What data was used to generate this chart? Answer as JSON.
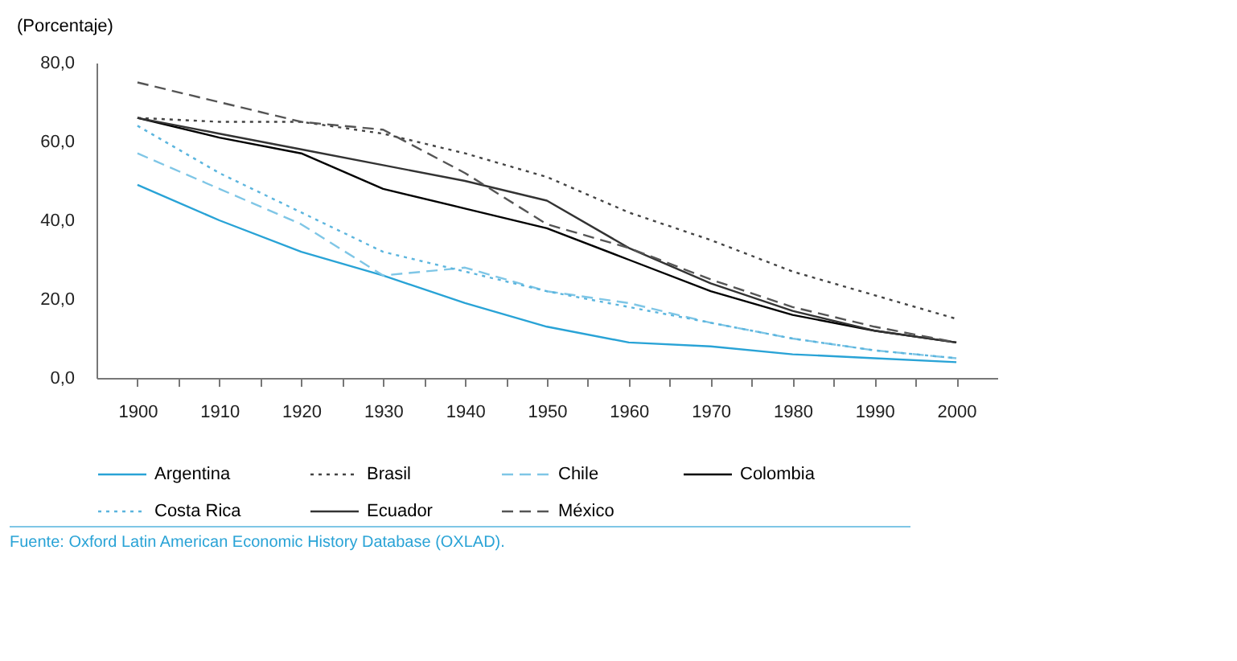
{
  "chart_data": {
    "type": "line",
    "ylabel": "(Porcentaje)",
    "x": [
      1900,
      1910,
      1920,
      1930,
      1940,
      1950,
      1960,
      1970,
      1980,
      1990,
      2000
    ],
    "series": [
      {
        "name": "Argentina",
        "color": "#29a3d6",
        "line_style": "solid",
        "values": [
          49,
          40,
          32,
          26,
          19,
          13,
          9,
          8,
          6,
          5,
          4
        ]
      },
      {
        "name": "Brasil",
        "color": "#444444",
        "line_style": "dotted",
        "values": [
          66,
          65,
          65,
          62,
          57,
          51,
          42,
          35,
          27,
          21,
          15
        ]
      },
      {
        "name": "Chile",
        "color": "#7fc6e6",
        "line_style": "dashed",
        "values": [
          57,
          48,
          39,
          26,
          28,
          22,
          19,
          14,
          10,
          7,
          5
        ]
      },
      {
        "name": "Colombia",
        "color": "#000000",
        "line_style": "solid",
        "values": [
          66,
          61,
          57,
          48,
          43,
          38,
          30,
          22,
          16,
          12,
          9
        ]
      },
      {
        "name": "Costa Rica",
        "color": "#5bb5de",
        "line_style": "dotted",
        "values": [
          64,
          52,
          42,
          32,
          27,
          22,
          18,
          14,
          10,
          7,
          5
        ]
      },
      {
        "name": "Ecuador",
        "color": "#333333",
        "line_style": "solid",
        "values": [
          66,
          62,
          58,
          54,
          50,
          45,
          33,
          24,
          17,
          12,
          9
        ]
      },
      {
        "name": "México",
        "color": "#555555",
        "line_style": "dashed",
        "values": [
          75,
          70,
          65,
          63,
          52,
          39,
          33,
          25,
          18,
          13,
          9
        ]
      }
    ],
    "xlim": [
      1895,
      2005
    ],
    "xticks": [
      1900,
      {
        "value": 1905,
        "label": null
      },
      1910,
      {
        "value": 1915,
        "label": null
      },
      1920,
      {
        "value": 1925,
        "label": null
      },
      1930,
      {
        "value": 1935,
        "label": null
      },
      1940,
      {
        "value": 1945,
        "label": null
      },
      1950,
      {
        "value": 1955,
        "label": null
      },
      1960,
      {
        "value": 1965,
        "label": null
      },
      1970,
      {
        "value": 1975,
        "label": null
      },
      1980,
      {
        "value": 1985,
        "label": null
      },
      1990,
      {
        "value": 1995,
        "label": null
      },
      2000
    ],
    "ylim": [
      0,
      80
    ],
    "yticks": [
      {
        "value": 0,
        "label": "0,0"
      },
      {
        "value": 20,
        "label": "20,0"
      },
      {
        "value": 40,
        "label": "40,0"
      },
      {
        "value": 60,
        "label": "60,0"
      },
      {
        "value": 80,
        "label": "80,0"
      }
    ],
    "grid": false,
    "legend": "bottom",
    "marker": "none",
    "annotations": [
      "Fuente: Oxford Latin American Economic History Database (OXLAD)."
    ]
  }
}
